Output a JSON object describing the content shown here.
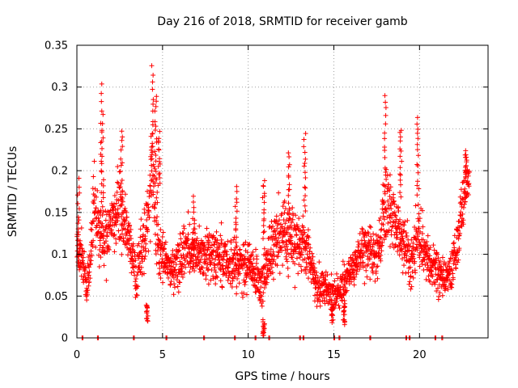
{
  "chart_data": {
    "type": "scatter",
    "title": "Day 216 of 2018, SRMTID for receiver gamb",
    "xlabel": "GPS time / hours",
    "ylabel": "SRMTID / TECUs",
    "xlim": [
      0,
      24
    ],
    "ylim": [
      0,
      0.35
    ],
    "xticks": [
      0,
      5,
      10,
      15,
      20
    ],
    "xtick_labels": [
      "0",
      "5",
      "10",
      "15",
      "20"
    ],
    "yticks": [
      0,
      0.05,
      0.1,
      0.15,
      0.2,
      0.25,
      0.3,
      0.35
    ],
    "ytick_labels": [
      "0",
      "0.05",
      "0.1",
      "0.15",
      "0.2",
      "0.25",
      "0.3",
      "0.35"
    ],
    "grid": true,
    "marker": "plus",
    "series": [
      {
        "name": "SRMTID",
        "color": "#ff0000",
        "trend": [
          [
            0.0,
            0.11,
            0.03
          ],
          [
            0.3,
            0.1,
            0.03
          ],
          [
            0.6,
            0.06,
            0.02
          ],
          [
            1.0,
            0.16,
            0.04
          ],
          [
            1.3,
            0.13,
            0.04
          ],
          [
            1.6,
            0.11,
            0.03
          ],
          [
            2.0,
            0.14,
            0.04
          ],
          [
            2.5,
            0.16,
            0.05
          ],
          [
            3.0,
            0.12,
            0.03
          ],
          [
            3.5,
            0.08,
            0.03
          ],
          [
            4.0,
            0.12,
            0.04
          ],
          [
            4.4,
            0.2,
            0.06
          ],
          [
            4.8,
            0.1,
            0.03
          ],
          [
            5.5,
            0.08,
            0.02
          ],
          [
            6.0,
            0.09,
            0.03
          ],
          [
            6.5,
            0.11,
            0.03
          ],
          [
            7.0,
            0.1,
            0.03
          ],
          [
            8.0,
            0.1,
            0.03
          ],
          [
            9.0,
            0.09,
            0.03
          ],
          [
            10.0,
            0.09,
            0.03
          ],
          [
            10.8,
            0.06,
            0.02
          ],
          [
            11.2,
            0.1,
            0.04
          ],
          [
            12.0,
            0.12,
            0.04
          ],
          [
            12.8,
            0.12,
            0.04
          ],
          [
            13.5,
            0.1,
            0.03
          ],
          [
            14.0,
            0.06,
            0.02
          ],
          [
            14.5,
            0.06,
            0.02
          ],
          [
            15.0,
            0.05,
            0.02
          ],
          [
            15.5,
            0.06,
            0.02
          ],
          [
            16.0,
            0.08,
            0.02
          ],
          [
            16.8,
            0.11,
            0.03
          ],
          [
            17.5,
            0.09,
            0.03
          ],
          [
            18.0,
            0.16,
            0.05
          ],
          [
            18.6,
            0.14,
            0.04
          ],
          [
            19.0,
            0.12,
            0.04
          ],
          [
            19.5,
            0.09,
            0.03
          ],
          [
            20.0,
            0.13,
            0.04
          ],
          [
            20.5,
            0.1,
            0.03
          ],
          [
            21.0,
            0.08,
            0.03
          ],
          [
            21.5,
            0.07,
            0.02
          ],
          [
            22.0,
            0.09,
            0.03
          ],
          [
            22.5,
            0.15,
            0.04
          ],
          [
            22.8,
            0.19,
            0.03
          ]
        ],
        "bursts": [
          [
            0.1,
            0.19,
            0.09
          ],
          [
            1.4,
            0.305,
            0.14
          ],
          [
            1.5,
            0.265,
            0.15
          ],
          [
            2.6,
            0.248,
            0.16
          ],
          [
            4.4,
            0.323,
            0.2
          ],
          [
            4.6,
            0.29,
            0.19
          ],
          [
            4.8,
            0.245,
            0.18
          ],
          [
            6.8,
            0.17,
            0.08
          ],
          [
            9.3,
            0.18,
            0.1
          ],
          [
            10.9,
            0.19,
            0.12
          ],
          [
            12.4,
            0.22,
            0.14
          ],
          [
            13.3,
            0.242,
            0.15
          ],
          [
            18.0,
            0.29,
            0.17
          ],
          [
            18.9,
            0.25,
            0.17
          ],
          [
            19.9,
            0.263,
            0.17
          ],
          [
            22.7,
            0.223,
            0.19
          ],
          [
            10.9,
            0.003,
            0.02
          ],
          [
            14.9,
            0.02,
            0.04
          ],
          [
            15.6,
            0.015,
            0.04
          ],
          [
            4.1,
            0.02,
            0.04
          ]
        ],
        "zeros": [
          0.3,
          1.2,
          3.3,
          5.2,
          7.4,
          9.2,
          10.4,
          11.2,
          13.0,
          13.2,
          15.0,
          15.3,
          17.1,
          19.2,
          19.4,
          20.9,
          21.3
        ]
      }
    ]
  }
}
